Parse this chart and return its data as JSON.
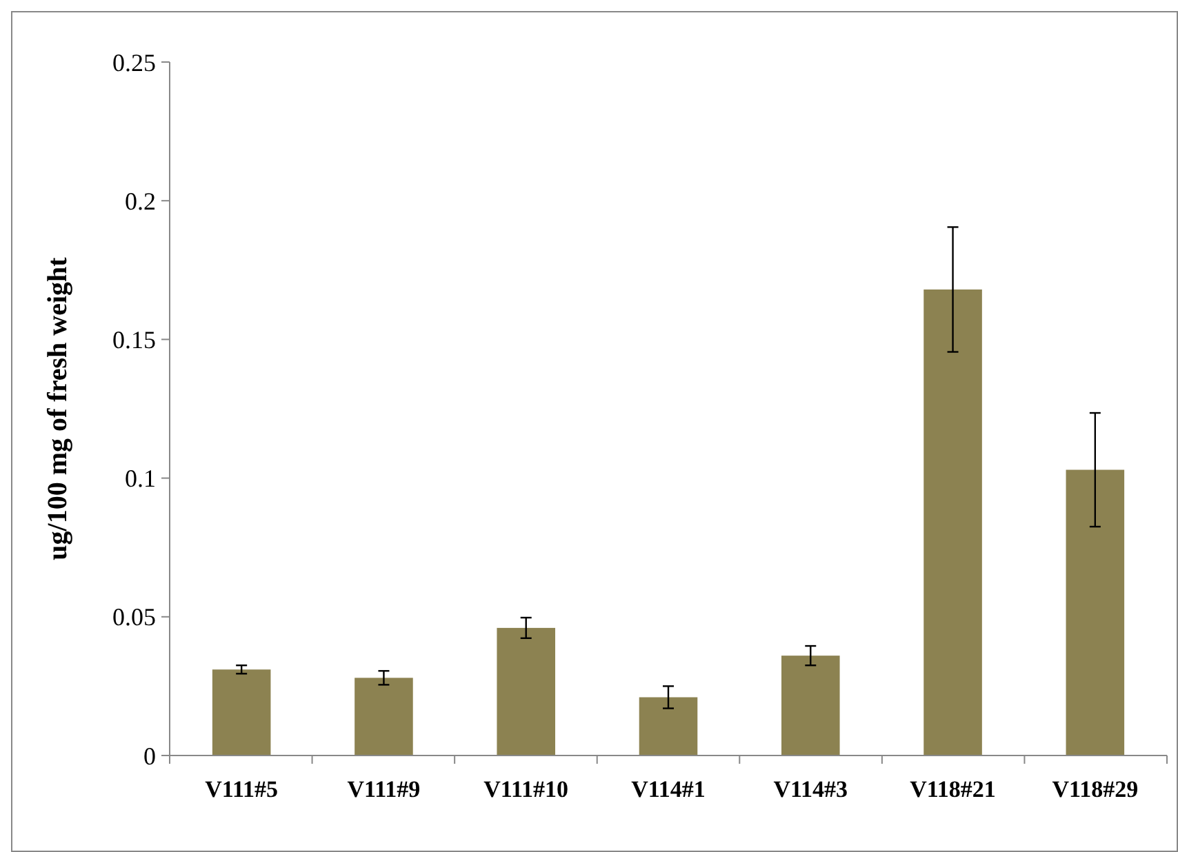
{
  "chart_data": {
    "type": "bar",
    "ylabel": "ug/100 mg of fresh weight",
    "categories": [
      "V111#5",
      "V111#9",
      "V111#10",
      "V114#1",
      "V114#3",
      "V118#21",
      "V118#29"
    ],
    "values": [
      0.031,
      0.028,
      0.046,
      0.021,
      0.036,
      0.168,
      0.103
    ],
    "errors": [
      0.0015,
      0.0025,
      0.0037,
      0.004,
      0.0035,
      0.0225,
      0.0205
    ],
    "color": "#8c8251",
    "ylim": [
      0,
      0.25
    ],
    "yticks": [
      0,
      0.05,
      0.1,
      0.15,
      0.2,
      0.25
    ],
    "grid": false
  }
}
